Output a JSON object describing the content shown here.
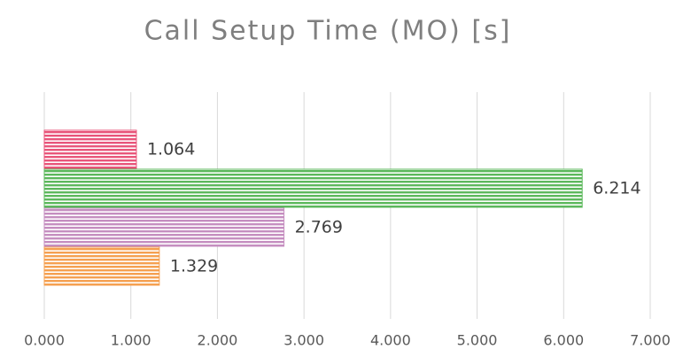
{
  "chart_data": {
    "type": "bar",
    "orientation": "horizontal",
    "title": "Call Setup Time (MO) [s]",
    "categories": [
      null,
      null,
      null,
      null
    ],
    "values": [
      1.064,
      6.214,
      2.769,
      1.329
    ],
    "colors": [
      "#e8557a",
      "#5cb85c",
      "#c58ec0",
      "#f5a050"
    ],
    "xlim": [
      0,
      7
    ],
    "xticks": [
      {
        "value": 0,
        "label": "0.000"
      },
      {
        "value": 1,
        "label": "1.000"
      },
      {
        "value": 2,
        "label": "2.000"
      },
      {
        "value": 3,
        "label": "3.000"
      },
      {
        "value": 4,
        "label": "4.000"
      },
      {
        "value": 5,
        "label": "5.000"
      },
      {
        "value": 6,
        "label": "6.000"
      },
      {
        "value": 7,
        "label": "7.000"
      }
    ],
    "grid": true
  }
}
